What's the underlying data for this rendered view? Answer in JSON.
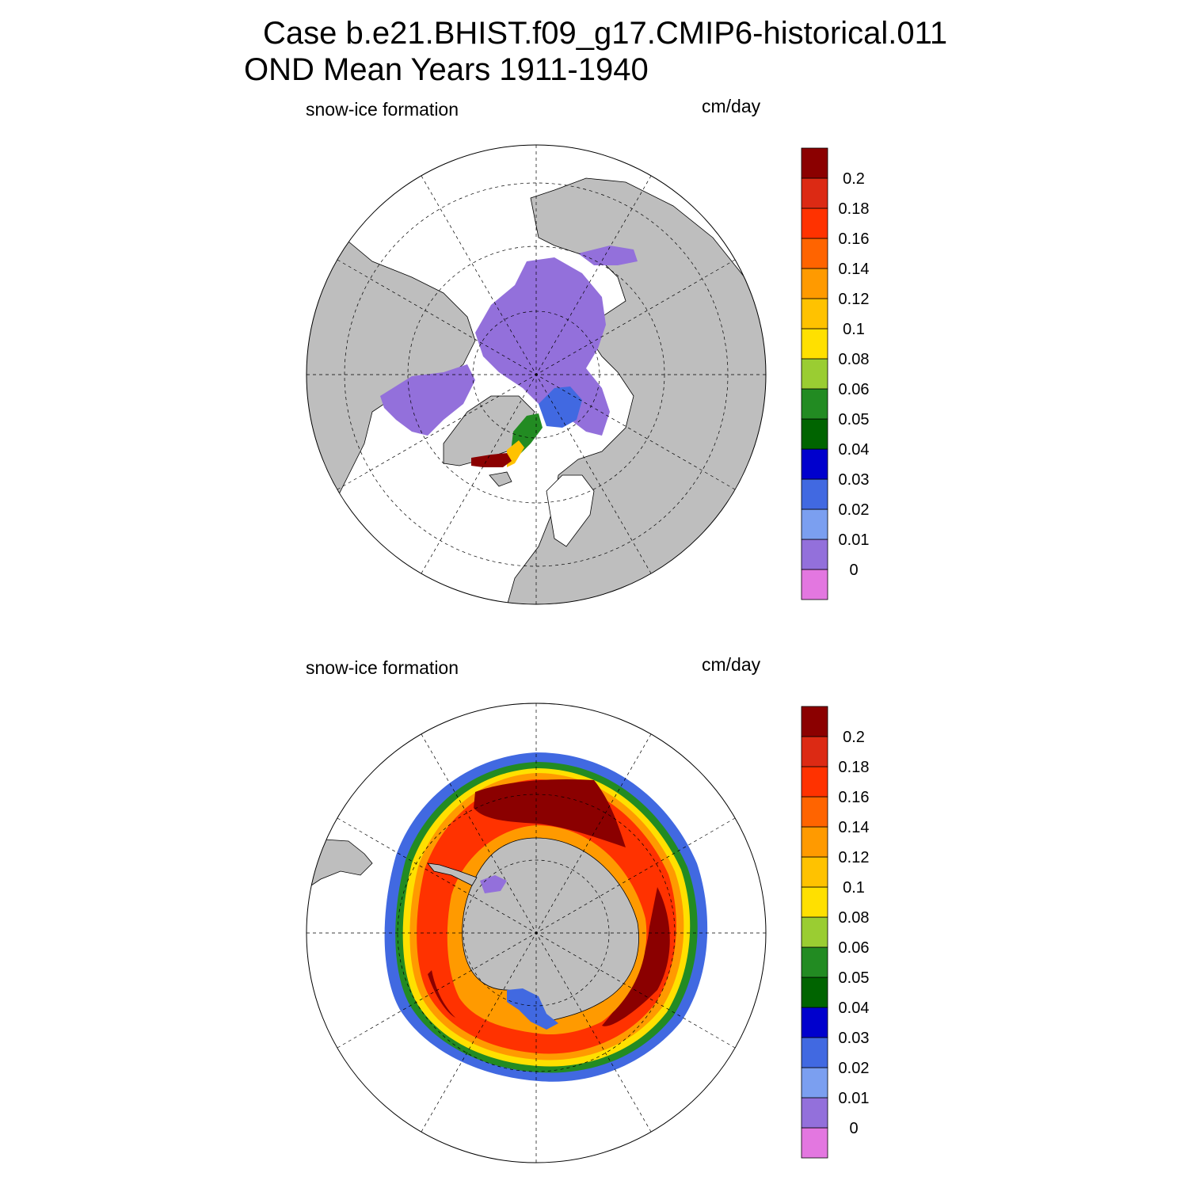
{
  "title": {
    "line1": "Case b.e21.BHIST.f09_g17.CMIP6-historical.011",
    "line2": "OND Mean   Years 1911-1940"
  },
  "colors": {
    "land": "#bebebe",
    "background": "#ffffff",
    "levels": [
      "#e377e0",
      "#9370db",
      "#7b9ff0",
      "#4169e1",
      "#0000cd",
      "#006400",
      "#228b22",
      "#9acd32",
      "#ffe000",
      "#ffc200",
      "#ff9a00",
      "#ff6400",
      "#ff3200",
      "#dc2a14",
      "#8b0000"
    ]
  },
  "panels": [
    {
      "id": "north",
      "hemisphere": "Northern Hemisphere",
      "label_left": "snow-ice formation",
      "label_right": "cm/day",
      "colorbar_labels": [
        "0.2",
        "0.18",
        "0.16",
        "0.14",
        "0.12",
        "0.1",
        "0.08",
        "0.06",
        "0.05",
        "0.04",
        "0.03",
        "0.02",
        "0.01",
        "0"
      ]
    },
    {
      "id": "south",
      "hemisphere": "Southern Hemisphere",
      "label_left": "snow-ice formation",
      "label_right": "cm/day",
      "colorbar_labels": [
        "0.2",
        "0.18",
        "0.16",
        "0.14",
        "0.12",
        "0.1",
        "0.08",
        "0.06",
        "0.05",
        "0.04",
        "0.03",
        "0.02",
        "0.01",
        "0"
      ]
    }
  ]
}
